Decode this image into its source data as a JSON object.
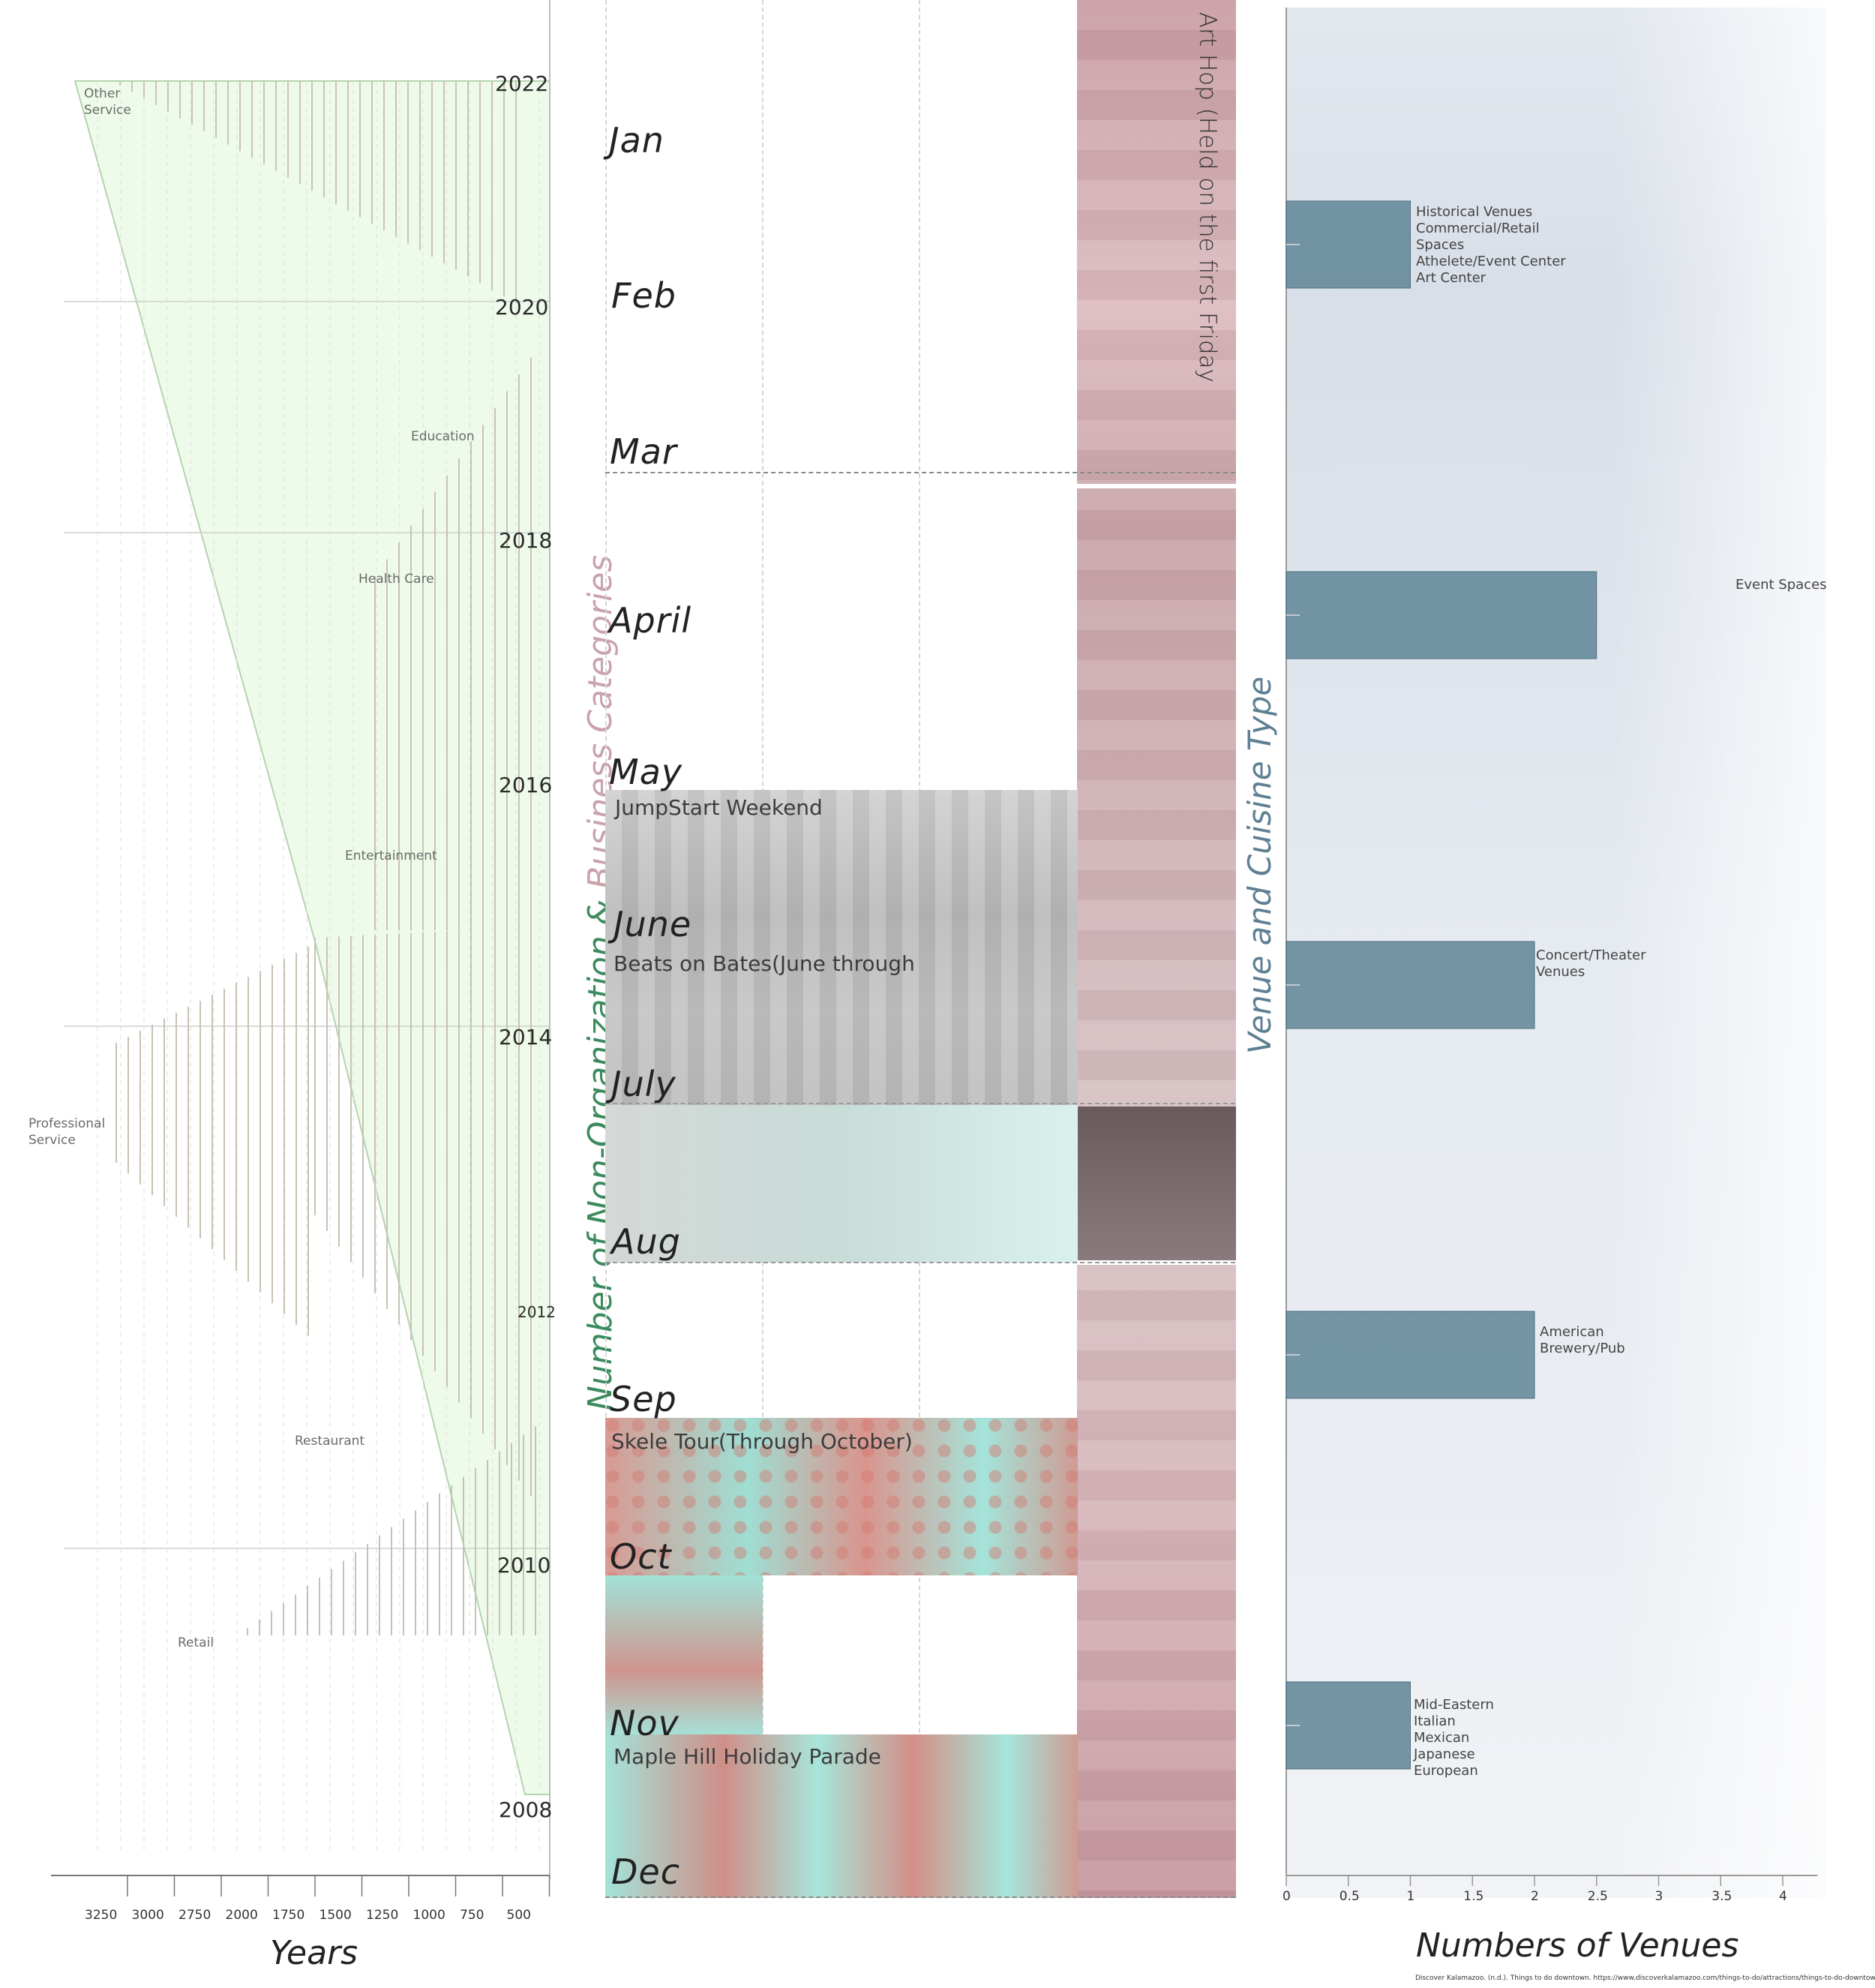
{
  "left_chart": {
    "y_axis_title_part1": "Number of Non-Organization &",
    "y_axis_title_part2": "Business Categories",
    "x_axis_title": "Years",
    "x_ticks": [
      "3250",
      "3000",
      "2750",
      "2000",
      "1750",
      "1500",
      "1250",
      "1000",
      "750",
      "500"
    ],
    "year_labels": [
      "2022",
      "2020",
      "2018",
      "2016",
      "2014",
      "2012",
      "2010",
      "2008"
    ],
    "category_labels": {
      "other_service": [
        "Other",
        "Service"
      ],
      "education": "Education",
      "health_care": "Health Care",
      "entertainment": "Entertainment",
      "professional_service": [
        "Professional",
        "Service"
      ],
      "restaurant": "Restaurant",
      "retail": "Retail"
    }
  },
  "calendar": {
    "months": [
      "Jan",
      "Feb",
      "Mar",
      "April",
      "May",
      "June",
      "July",
      "Aug",
      "Sep",
      "Oct",
      "Nov",
      "Dec"
    ],
    "events": {
      "art_hop": "Art Hop (Held on the first Friday",
      "jumpstart": "JumpStart Weekend",
      "beats": "Beats on Bates(June through",
      "skele": "Skele Tour(Through October)",
      "maple": "Maple Hill Holiday Parade"
    }
  },
  "chart_data": {
    "type": "bar",
    "orientation": "horizontal",
    "title": "Venue and Cuisine Type",
    "xlabel": "Numbers of Venues",
    "xlim": [
      0,
      4.25
    ],
    "xticks": [
      "0",
      "0.5",
      "1",
      "1.5",
      "2",
      "2.5",
      "3",
      "3.5",
      "4"
    ],
    "categories": [
      [
        "Historical Venues",
        "Commercial/Retail",
        "Spaces",
        "Athelete/Event Center",
        "Art Center"
      ],
      [
        "Event Spaces"
      ],
      [
        "Concert/Theater",
        "Venues"
      ],
      [
        "American",
        "Brewery/Pub"
      ],
      [
        "Mid-Eastern",
        "Italian",
        "Mexican",
        "Japanese",
        "European"
      ]
    ],
    "values": [
      1,
      2.5,
      2,
      2,
      1
    ],
    "colors": {
      "bar": "#5f8597",
      "title": "#5f7f93",
      "legend_green": "#3c8a5e",
      "legend_pink": "#c9a3ab"
    }
  },
  "footnote": "Discover Kalamazoo. (n.d.). Things to do downtown. https://www.discoverkalamazoo.com/things-to-do/attractions/things-to-do-downtown/"
}
